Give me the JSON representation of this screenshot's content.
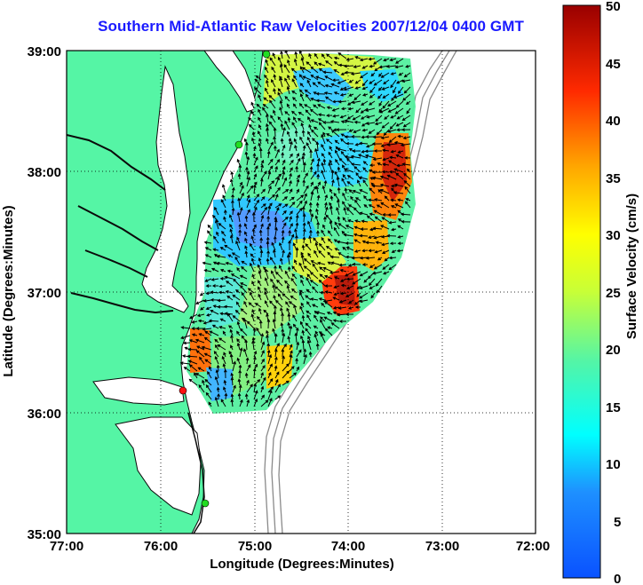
{
  "title": "Southern Mid-Atlantic Raw Velocities 2007/12/04 0400 GMT",
  "x_axis": {
    "label": "Longitude (Degrees:Minutes)",
    "ticks": [
      "77:00",
      "76:00",
      "75:00",
      "74:00",
      "73:00",
      "72:00"
    ]
  },
  "y_axis": {
    "label": "Latitude (Degrees:Minutes)",
    "ticks": [
      "39:00",
      "38:00",
      "37:00",
      "36:00",
      "35:00"
    ]
  },
  "colorbar": {
    "label": "Surface Velocity (cm/s)",
    "ticks": [
      "50",
      "45",
      "40",
      "35",
      "30",
      "25",
      "20",
      "15",
      "10",
      "5",
      "0"
    ],
    "colors": [
      "#0000bf",
      "#0060ff",
      "#00ffff",
      "#60ff9f",
      "#ffff00",
      "#ff7f00",
      "#ff0000",
      "#8b0000"
    ]
  },
  "colors": {
    "land": "#55f5a5",
    "coastline": "#0a0a0a",
    "bathymetry": "#888888",
    "grid": "#000000",
    "site_green": "#22dd22",
    "site_red": "#ff1111"
  },
  "stations": [
    {
      "name": "green-station",
      "color": "green"
    },
    {
      "name": "green-station",
      "color": "green"
    },
    {
      "name": "green-station",
      "color": "green"
    },
    {
      "name": "red-station",
      "color": "red"
    }
  ]
}
